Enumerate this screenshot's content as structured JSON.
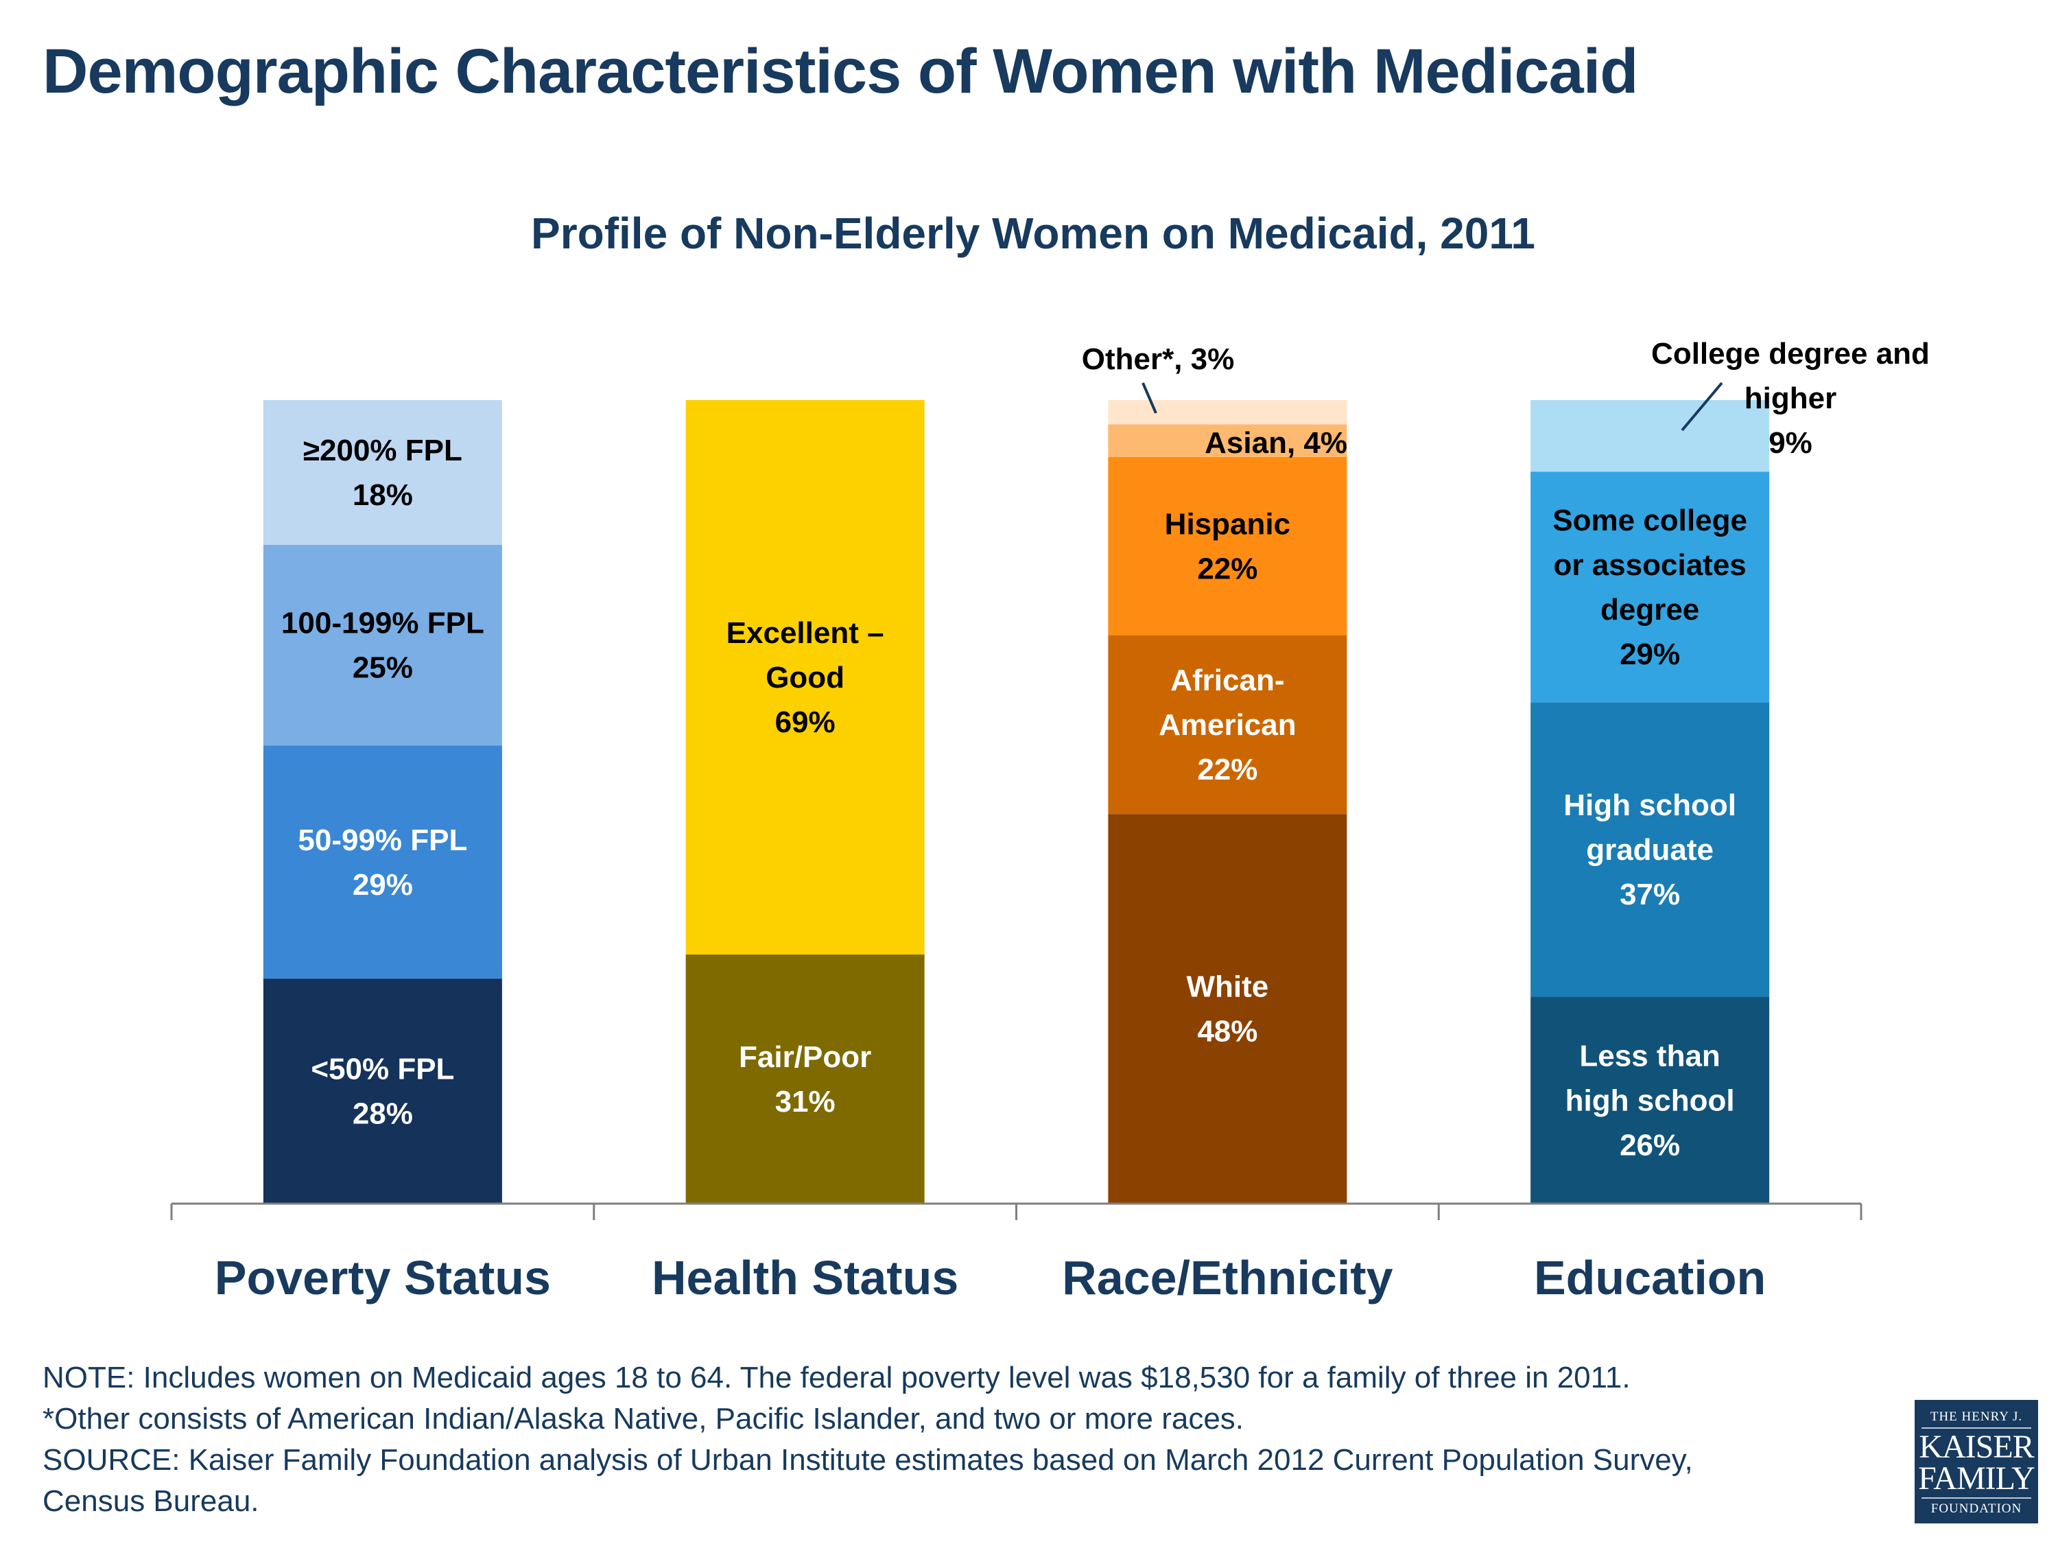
{
  "title": "Demographic Characteristics of Women with Medicaid",
  "logo": {
    "line1": "THE HENRY J.",
    "line2": "KAISER",
    "line3": "FAMILY",
    "line4": "FOUNDATION"
  },
  "notes": [
    "NOTE:  Includes women on Medicaid ages 18 to 64. The federal poverty level was $18,530 for a family of three in 2011.",
    "*Other consists of American Indian/Alaska Native, Pacific Islander, and two or more races.",
    "SOURCE:  Kaiser Family Foundation analysis of Urban Institute estimates based on March 2012 Current Population Survey,",
    "Census Bureau."
  ],
  "chart_data": {
    "type": "bar",
    "stacked": true,
    "normalized": "100% stacked",
    "title": "Profile of Non-Elderly Women on Medicaid, 2011",
    "categories": [
      "Poverty Status",
      "Health Status",
      "Race/Ethnicity",
      "Education"
    ],
    "stacks": [
      {
        "category": "Poverty Status",
        "segments": [
          {
            "name": "<50% FPL",
            "value": 28,
            "label": [
              "<50% FPL",
              "28%"
            ],
            "color": "#14325a",
            "text_color": "#ffffff"
          },
          {
            "name": "50-99% FPL",
            "value": 29,
            "label": [
              "50-99% FPL",
              "29%"
            ],
            "color": "#3a87d6",
            "text_color": "#ffffff"
          },
          {
            "name": "100-199% FPL",
            "value": 25,
            "label": [
              "100-199% FPL",
              "25%"
            ],
            "color": "#7aaee4",
            "text_color": "#000000"
          },
          {
            "name": "≥200% FPL",
            "value": 18,
            "label": [
              "≥200% FPL",
              "18%"
            ],
            "color": "#bed8f2",
            "text_color": "#000000"
          }
        ]
      },
      {
        "category": "Health Status",
        "segments": [
          {
            "name": "Fair/Poor",
            "value": 31,
            "label": [
              "Fair/Poor",
              "31%"
            ],
            "color": "#7f6a00",
            "text_color": "#ffffff"
          },
          {
            "name": "Excellent – Good",
            "value": 69,
            "label": [
              "Excellent –",
              "Good",
              "69%"
            ],
            "color": "#fdd000",
            "text_color": "#000000"
          }
        ]
      },
      {
        "category": "Race/Ethnicity",
        "segments": [
          {
            "name": "White",
            "value": 48,
            "label": [
              "White",
              "48%"
            ],
            "color": "#8b4100",
            "text_color": "#ffffff"
          },
          {
            "name": "African-American",
            "value": 22,
            "label": [
              "African-",
              "American",
              "22%"
            ],
            "color": "#cc6600",
            "text_color": "#ffffff"
          },
          {
            "name": "Hispanic",
            "value": 22,
            "label": [
              "Hispanic",
              "22%"
            ],
            "color": "#ff8c12",
            "text_color": "#000000"
          },
          {
            "name": "Asian",
            "value": 4,
            "label": [
              "Asian, 4%"
            ],
            "color": "#fdb96f",
            "text_color": "#000000"
          },
          {
            "name": "Other*",
            "value": 3,
            "label": [
              "Other*, 3%"
            ],
            "color": "#ffe5cc",
            "text_color": "#000000"
          }
        ]
      },
      {
        "category": "Education",
        "segments": [
          {
            "name": "Less than high school",
            "value": 26,
            "label": [
              "Less than",
              "high school",
              "26%"
            ],
            "color": "#115279",
            "text_color": "#ffffff"
          },
          {
            "name": "High school graduate",
            "value": 37,
            "label": [
              "High school",
              "graduate",
              "37%"
            ],
            "color": "#1a7db5",
            "text_color": "#ffffff"
          },
          {
            "name": "Some college or associates degree",
            "value": 29,
            "label": [
              "Some college",
              "or associates",
              "degree",
              "29%"
            ],
            "color": "#33a4e2",
            "text_color": "#000000"
          },
          {
            "name": "College degree and higher",
            "value": 9,
            "label": [
              "College degree and",
              "higher",
              "9%"
            ],
            "color": "#addcf5",
            "text_color": "#000000"
          }
        ]
      }
    ],
    "axis_color": "#7f7f7f",
    "category_label_color": "#173a5e",
    "grid": false,
    "legend": "none"
  }
}
